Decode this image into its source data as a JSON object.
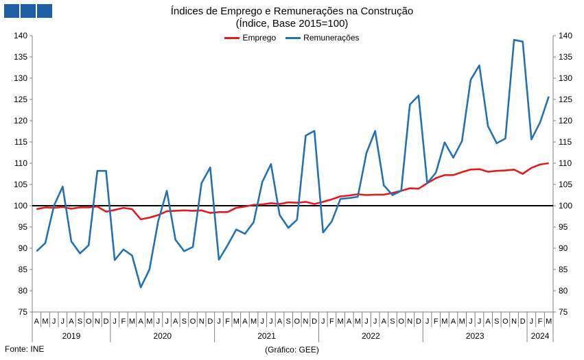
{
  "header": {
    "title": "Índices de Emprego e Remunerações na Construção",
    "subtitle": "(Índice, Base 2015=100)"
  },
  "footer": {
    "source": "Fonte: INE",
    "credit": "(Gráfico: GEE)"
  },
  "colors": {
    "logo": "#1f5fa6",
    "emprego": "#e3191b",
    "remuneracoes": "#2271b5",
    "reference_line": "#000000",
    "axis": "#808080"
  },
  "chart_data": {
    "type": "line",
    "title": "Índices de Emprego e Remunerações na Construção",
    "subtitle": "(Índice, Base 2015=100)",
    "ylim": [
      75,
      140
    ],
    "yticks": [
      75,
      80,
      85,
      90,
      95,
      100,
      105,
      110,
      115,
      120,
      125,
      130,
      135,
      140
    ],
    "y2ticks": [
      75,
      80,
      85,
      90,
      95,
      100,
      105,
      110,
      115,
      120,
      125,
      130,
      135,
      140
    ],
    "reference_line": 100,
    "grid": false,
    "legend_position": "top-center",
    "month_labels": [
      "A",
      "M",
      "J",
      "J",
      "A",
      "S",
      "O",
      "N",
      "D",
      "J",
      "F",
      "M",
      "A",
      "M",
      "J",
      "J",
      "A",
      "S",
      "O",
      "N",
      "D",
      "J",
      "F",
      "M",
      "A",
      "M",
      "J",
      "J",
      "A",
      "S",
      "O",
      "N",
      "D",
      "J",
      "F",
      "M",
      "A",
      "M",
      "J",
      "J",
      "A",
      "S",
      "O",
      "N",
      "D",
      "J",
      "F",
      "M",
      "A",
      "M",
      "J",
      "J",
      "A",
      "S",
      "O",
      "N",
      "D",
      "J",
      "F",
      "M"
    ],
    "years": [
      {
        "label": "2019",
        "months": 9
      },
      {
        "label": "2020",
        "months": 12
      },
      {
        "label": "2021",
        "months": 12
      },
      {
        "label": "2022",
        "months": 12
      },
      {
        "label": "2023",
        "months": 12
      },
      {
        "label": "2024",
        "months": 3
      }
    ],
    "series": [
      {
        "name": "Emprego",
        "color": "#e3191b",
        "values": [
          99.2,
          99.6,
          99.5,
          99.7,
          99.3,
          99.6,
          99.6,
          99.8,
          98.6,
          99.0,
          99.5,
          99.2,
          96.8,
          97.2,
          97.8,
          98.7,
          98.8,
          98.9,
          98.8,
          98.9,
          98.3,
          98.5,
          98.5,
          99.5,
          99.8,
          100.2,
          100.3,
          100.6,
          100.4,
          100.8,
          100.7,
          100.9,
          100.4,
          100.9,
          101.5,
          102.2,
          102.4,
          102.7,
          102.5,
          102.6,
          102.6,
          103.0,
          103.5,
          104.1,
          104.0,
          105.3,
          106.5,
          107.2,
          107.2,
          107.9,
          108.5,
          108.6,
          108.0,
          108.2,
          108.3,
          108.5,
          107.5,
          108.9,
          109.7,
          110.0
        ]
      },
      {
        "name": "Remunerações",
        "color": "#2271b5",
        "values": [
          89.3,
          91.2,
          100.0,
          104.5,
          91.6,
          88.8,
          90.7,
          108.2,
          108.2,
          87.2,
          89.7,
          88.3,
          80.8,
          85.0,
          96.3,
          103.5,
          92.0,
          89.3,
          90.3,
          105.3,
          109.0,
          87.3,
          90.7,
          94.4,
          93.4,
          96.1,
          105.6,
          109.8,
          97.8,
          94.8,
          96.7,
          116.5,
          117.6,
          93.7,
          96.3,
          101.6,
          101.8,
          102.1,
          112.4,
          117.6,
          104.8,
          102.5,
          103.5,
          123.8,
          125.9,
          105.3,
          107.8,
          114.9,
          111.3,
          115.2,
          129.6,
          133.0,
          118.7,
          114.7,
          115.8,
          139.0,
          138.6,
          115.6,
          119.6,
          125.7
        ]
      }
    ]
  }
}
